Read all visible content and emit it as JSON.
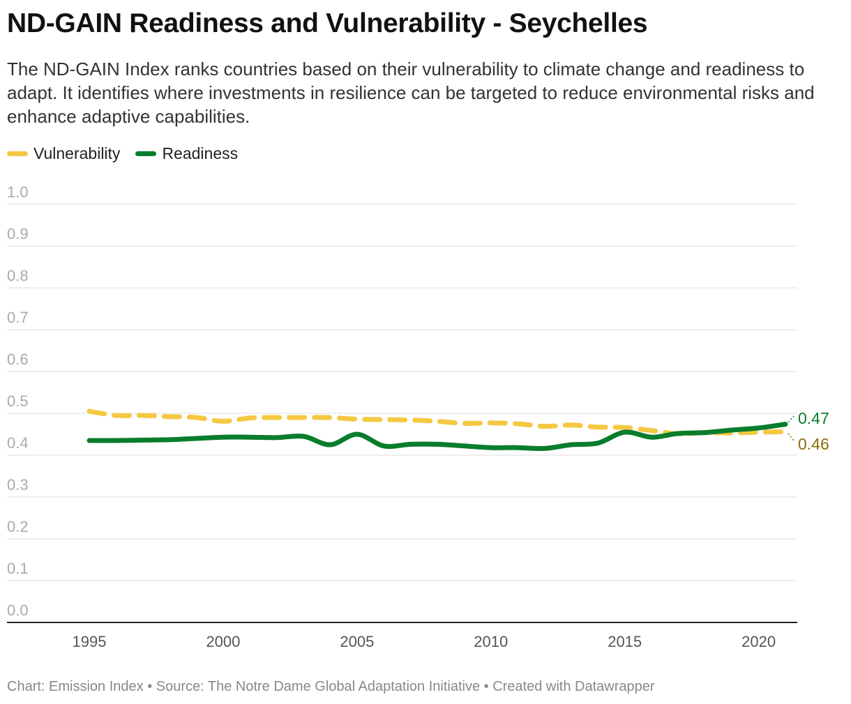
{
  "title": "ND-GAIN Readiness and Vulnerability - Seychelles",
  "subtitle": "The ND-GAIN Index ranks countries based on their vulnerability to climate change and readiness to adapt. It identifies where investments in resilience can be targeted to reduce environmental risks and enhance adaptive capabilities.",
  "footer": "Chart: Emission Index • Source: The Notre Dame Global Adaptation Initiative • Created with Datawrapper",
  "colors": {
    "vulnerability": "#f5c842",
    "readiness": "#0a7d2c",
    "vulnerability_label": "#8a6d00",
    "readiness_label": "#0a7d2c"
  },
  "chart_data": {
    "type": "line",
    "x": [
      1995,
      1996,
      1997,
      1998,
      1999,
      2000,
      2001,
      2002,
      2003,
      2004,
      2005,
      2006,
      2007,
      2008,
      2009,
      2010,
      2011,
      2012,
      2013,
      2014,
      2015,
      2016,
      2017,
      2018,
      2019,
      2020,
      2021
    ],
    "series": [
      {
        "name": "Vulnerability",
        "style": "dashed",
        "values": [
          0.505,
          0.495,
          0.495,
          0.492,
          0.49,
          0.481,
          0.489,
          0.49,
          0.49,
          0.49,
          0.486,
          0.485,
          0.484,
          0.481,
          0.476,
          0.477,
          0.475,
          0.469,
          0.472,
          0.467,
          0.466,
          0.459,
          0.451,
          0.454,
          0.453,
          0.455,
          0.456
        ]
      },
      {
        "name": "Readiness",
        "style": "solid",
        "values": [
          0.435,
          0.435,
          0.436,
          0.437,
          0.44,
          0.443,
          0.443,
          0.442,
          0.445,
          0.425,
          0.45,
          0.422,
          0.426,
          0.426,
          0.422,
          0.418,
          0.418,
          0.416,
          0.425,
          0.429,
          0.455,
          0.443,
          0.452,
          0.454,
          0.46,
          0.465,
          0.474
        ]
      }
    ],
    "end_labels": [
      "0.47",
      "0.46"
    ],
    "yticks": [
      "0.0",
      "0.1",
      "0.2",
      "0.3",
      "0.4",
      "0.5",
      "0.6",
      "0.7",
      "0.8",
      "0.9",
      "1.0"
    ],
    "xticks": [
      "1995",
      "2000",
      "2005",
      "2010",
      "2015",
      "2020"
    ],
    "ylim": [
      0,
      1
    ],
    "grid": true,
    "legend": "top-left"
  }
}
